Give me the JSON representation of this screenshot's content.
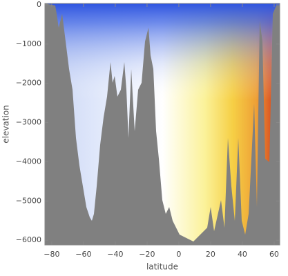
{
  "chart_data": {
    "type": "density",
    "xlabel": "latitude",
    "ylabel": "elevation",
    "xlim": [
      -84.3,
      63.5
    ],
    "ylim": [
      -6120,
      35
    ],
    "xticks": [
      {
        "value": -80,
        "label": "−80"
      },
      {
        "value": -60,
        "label": "−60"
      },
      {
        "value": -40,
        "label": "−40"
      },
      {
        "value": -20,
        "label": "−20"
      },
      0,
      20,
      40,
      60
    ],
    "yticks": [
      0,
      {
        "value": -1000,
        "label": "−1000"
      },
      {
        "value": -2000,
        "label": "−2000"
      },
      {
        "value": -3000,
        "label": "−3000"
      },
      {
        "value": -4000,
        "label": "−4000"
      },
      {
        "value": -5000,
        "label": "−5000"
      },
      {
        "value": -6000,
        "label": "−6000"
      }
    ]
  }
}
